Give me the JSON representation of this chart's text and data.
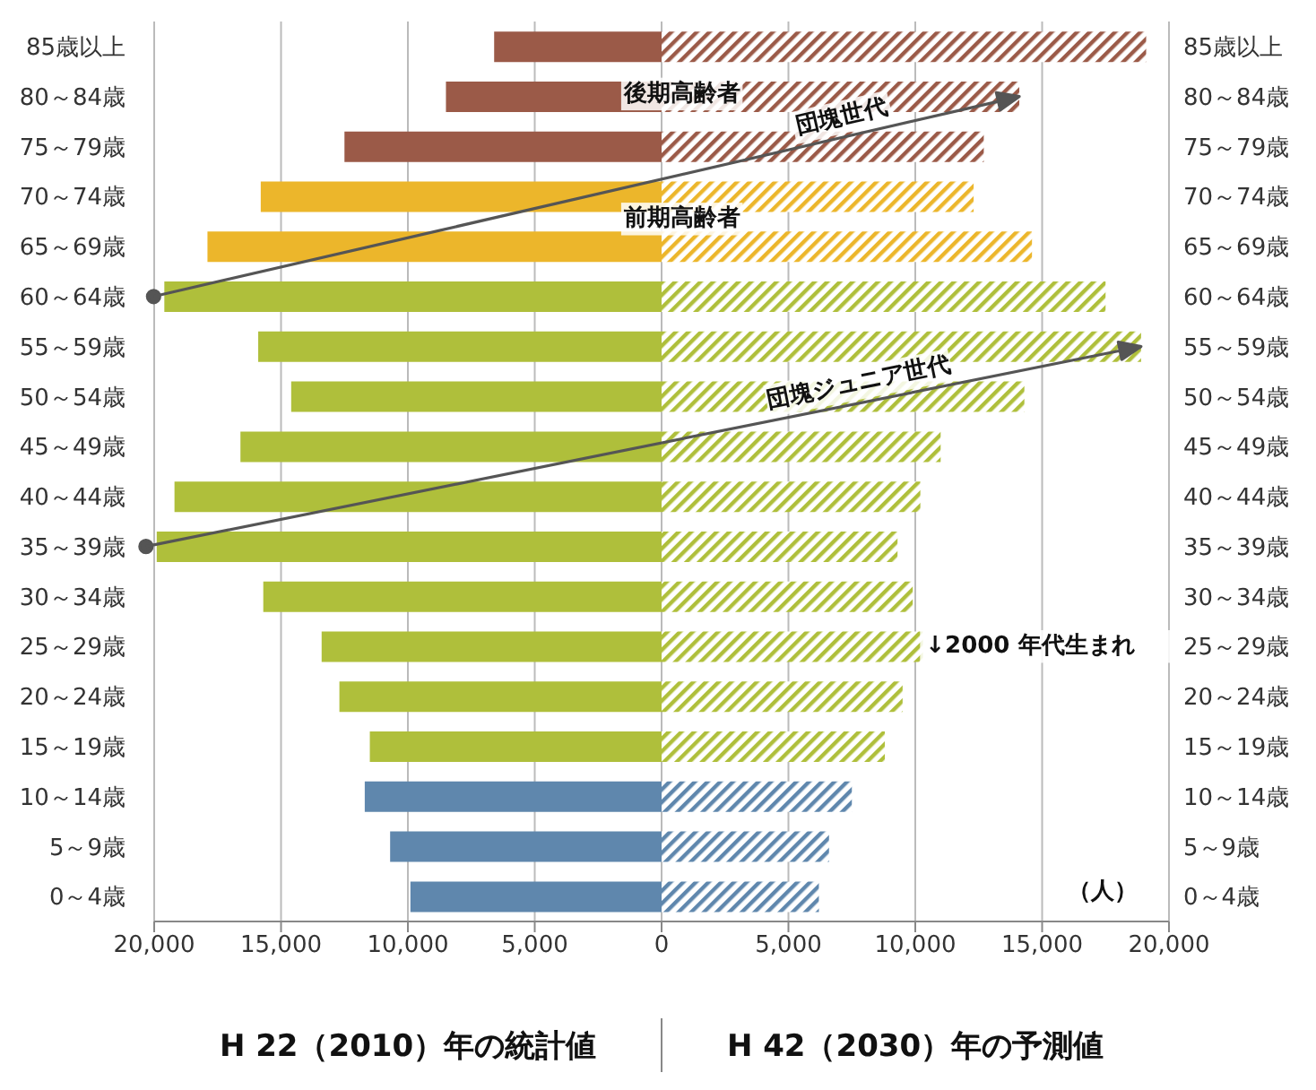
{
  "chart_data": {
    "type": "bar",
    "orientation": "horizontal",
    "categories": [
      "85歳以上",
      "80～84歳",
      "75～79歳",
      "70～74歳",
      "65～69歳",
      "60～64歳",
      "55～59歳",
      "50～54歳",
      "45～49歳",
      "40～44歳",
      "35～39歳",
      "30～34歳",
      "25～29歳",
      "20～24歳",
      "15～19歳",
      "10～14歳",
      "5～9歳",
      "0～4歳"
    ],
    "series": [
      {
        "values": [
          -6600,
          -8500,
          -12500,
          -15800,
          -17900,
          -19600,
          -15900,
          -14600,
          -16600,
          -19200,
          -19900,
          -15700,
          -13400,
          -12700,
          -11500,
          -11700,
          -10700,
          -9900
        ],
        "colors": [
          "#9b5a48",
          "#9b5a48",
          "#9b5a48",
          "#ecb62b",
          "#ecb62b",
          "#afbf3b",
          "#afbf3b",
          "#afbf3b",
          "#afbf3b",
          "#afbf3b",
          "#afbf3b",
          "#afbf3b",
          "#afbf3b",
          "#afbf3b",
          "#afbf3b",
          "#5f87ad",
          "#5f87ad",
          "#5f87ad"
        ]
      },
      {
        "values": [
          19100,
          14100,
          12700,
          12300,
          14600,
          17500,
          18900,
          14300,
          11000,
          10200,
          9300,
          9900,
          10300,
          9500,
          8800,
          7500,
          6600,
          6200
        ],
        "colors": [
          "#9b5a48",
          "#9b5a48",
          "#9b5a48",
          "#ecb62b",
          "#ecb62b",
          "#afbf3b",
          "#afbf3b",
          "#afbf3b",
          "#afbf3b",
          "#afbf3b",
          "#afbf3b",
          "#afbf3b",
          "#afbf3b",
          "#afbf3b",
          "#afbf3b",
          "#5f87ad",
          "#5f87ad",
          "#5f87ad"
        ]
      }
    ],
    "xlim": [
      -20000,
      20000
    ],
    "xticks": [
      {
        "value": -20000,
        "label": "20,000"
      },
      {
        "value": -15000,
        "label": "15,000"
      },
      {
        "value": -10000,
        "label": "10,000"
      },
      {
        "value": -5000,
        "label": "5,000"
      },
      0,
      {
        "value": 5000,
        "label": "5,000"
      },
      {
        "value": 10000,
        "label": "10,000"
      },
      {
        "value": 15000,
        "label": "15,000"
      },
      {
        "value": 20000,
        "label": "20,000"
      }
    ],
    "grid": "x",
    "legend": false,
    "stacked": true,
    "annotations": [
      "後期高齢者",
      "前期高齢者",
      "団塊世代",
      "団塊ジュニア世代",
      "↓2000 年代生まれ",
      "（人）",
      "H 22（2010）年の統計値",
      "H 42（2030）年の予測値"
    ]
  }
}
